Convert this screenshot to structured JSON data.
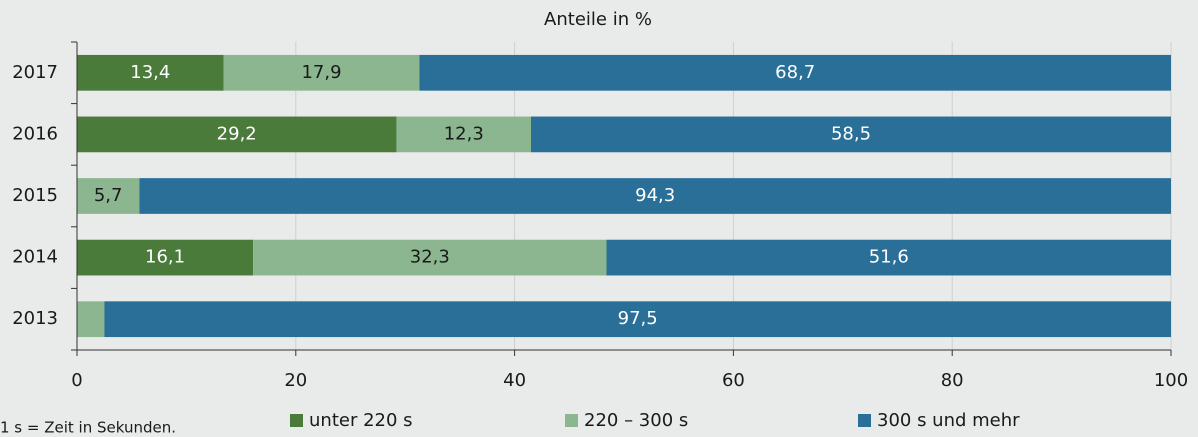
{
  "chart_data": {
    "type": "stacked_barh",
    "title": "Anteile in %",
    "note": "1 s = Zeit in Sekunden.",
    "categories": [
      "2017",
      "2016",
      "2015",
      "2014",
      "2013"
    ],
    "series": [
      {
        "name": "unter 220 s",
        "color": "#4a7b3b",
        "values": [
          13.4,
          29.2,
          null,
          16.1,
          null
        ],
        "value_labels": [
          "13,4",
          "29,2",
          null,
          "16,1",
          null
        ]
      },
      {
        "name": "220 – 300 s",
        "color": "#8bb68f",
        "values": [
          17.9,
          12.3,
          5.7,
          32.3,
          2.5
        ],
        "value_labels": [
          "17,9",
          "12,3",
          "5,7",
          "32,3",
          null
        ]
      },
      {
        "name": "300 s und mehr",
        "color": "#2a6f98",
        "values": [
          68.7,
          58.5,
          94.3,
          51.6,
          97.5
        ],
        "value_labels": [
          "68,7",
          "58,5",
          "94,3",
          "51,6",
          "97,5"
        ]
      }
    ],
    "xlim": [
      0,
      100
    ],
    "xticks": [
      0,
      20,
      40,
      60,
      80,
      100
    ],
    "grid": true
  }
}
